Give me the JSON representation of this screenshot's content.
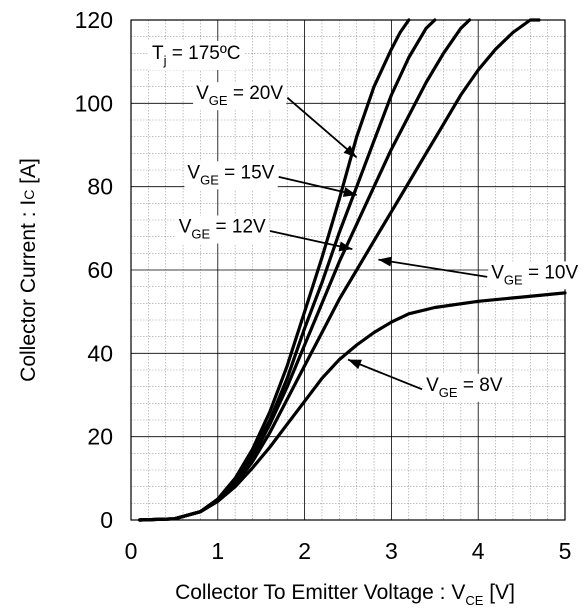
{
  "chart_data": {
    "type": "line",
    "title": "",
    "xlabel": {
      "main": "Collector To Emitter Voltage : V",
      "sub": "CE",
      "unit": " [V]"
    },
    "ylabel": {
      "main": "Collector Current : I",
      "sub": "C",
      "unit": " [A]"
    },
    "xlim": [
      0,
      5
    ],
    "ylim": [
      0,
      120
    ],
    "xticks": [
      0,
      1,
      2,
      3,
      4,
      5
    ],
    "yticks": [
      0,
      20,
      40,
      60,
      80,
      100,
      120
    ],
    "grid": true,
    "condition": {
      "main": "T",
      "sub": "j",
      "rest": " = 175ºC"
    },
    "series": [
      {
        "name": "VGE = 20V",
        "label_main": "V",
        "label_sub": "GE",
        "label_rest": " = 20V",
        "x": [
          0.1,
          0.5,
          0.8,
          1.0,
          1.2,
          1.4,
          1.6,
          1.8,
          2.0,
          2.2,
          2.4,
          2.6,
          2.8,
          3.0,
          3.1,
          3.2
        ],
        "y": [
          0,
          0.3,
          2,
          5,
          10,
          17,
          26,
          37,
          50,
          63,
          77,
          92,
          104,
          113,
          117,
          120
        ]
      },
      {
        "name": "VGE = 15V",
        "label_main": "V",
        "label_sub": "GE",
        "label_rest": " = 15V",
        "x": [
          0.1,
          0.5,
          0.8,
          1.0,
          1.2,
          1.4,
          1.6,
          1.8,
          2.0,
          2.2,
          2.4,
          2.6,
          2.8,
          3.0,
          3.2,
          3.4,
          3.5
        ],
        "y": [
          0,
          0.3,
          2,
          5,
          10,
          16,
          24,
          34,
          46,
          57,
          69,
          80,
          91,
          102,
          111,
          118,
          120
        ]
      },
      {
        "name": "VGE = 12V",
        "label_main": "V",
        "label_sub": "GE",
        "label_rest": " = 12V",
        "x": [
          0.1,
          0.5,
          0.8,
          1.0,
          1.2,
          1.4,
          1.6,
          1.8,
          2.0,
          2.2,
          2.4,
          2.6,
          2.8,
          3.0,
          3.2,
          3.4,
          3.6,
          3.8,
          3.9
        ],
        "y": [
          0,
          0.3,
          2,
          5,
          9,
          15,
          23,
          32,
          42,
          52,
          62,
          71,
          80,
          89,
          97,
          105,
          112,
          118,
          120
        ]
      },
      {
        "name": "VGE = 10V",
        "label_main": "V",
        "label_sub": "GE",
        "label_rest": " = 10V",
        "x": [
          0.1,
          0.5,
          0.8,
          1.0,
          1.2,
          1.4,
          1.6,
          1.8,
          2.0,
          2.2,
          2.4,
          2.6,
          2.8,
          3.0,
          3.2,
          3.4,
          3.6,
          3.8,
          4.0,
          4.2,
          4.4,
          4.6,
          4.7
        ],
        "y": [
          0,
          0.3,
          2,
          4.5,
          8.5,
          14,
          21,
          29,
          37,
          45,
          53,
          60,
          67,
          74,
          81,
          88,
          95,
          102,
          108,
          113,
          117,
          120,
          120
        ]
      },
      {
        "name": "VGE = 8V",
        "label_main": "V",
        "label_sub": "GE",
        "label_rest": " = 8V",
        "x": [
          0.1,
          0.5,
          0.8,
          1.0,
          1.2,
          1.4,
          1.6,
          1.8,
          2.0,
          2.2,
          2.4,
          2.6,
          2.8,
          3.0,
          3.2,
          3.5,
          4.0,
          4.5,
          5.0
        ],
        "y": [
          0,
          0.3,
          2,
          4.5,
          8,
          12.5,
          17.5,
          23,
          28.5,
          34,
          38.5,
          42,
          45,
          47.5,
          49.5,
          51,
          52.5,
          53.5,
          54.5
        ]
      }
    ],
    "annotations": [
      {
        "series": 0,
        "text_x": 0.75,
        "text_y": 101,
        "arrow_to": [
          2.6,
          87
        ]
      },
      {
        "series": 1,
        "text_x": 0.65,
        "text_y": 82,
        "arrow_to": [
          2.6,
          78
        ]
      },
      {
        "series": 2,
        "text_x": 0.55,
        "text_y": 69,
        "arrow_to": [
          2.55,
          65
        ]
      },
      {
        "series": 3,
        "text_x": 4.15,
        "text_y": 58,
        "arrow_to": [
          2.85,
          62.5
        ]
      },
      {
        "series": 4,
        "text_x": 3.4,
        "text_y": 31,
        "arrow_to": [
          2.5,
          38.5
        ]
      }
    ]
  }
}
